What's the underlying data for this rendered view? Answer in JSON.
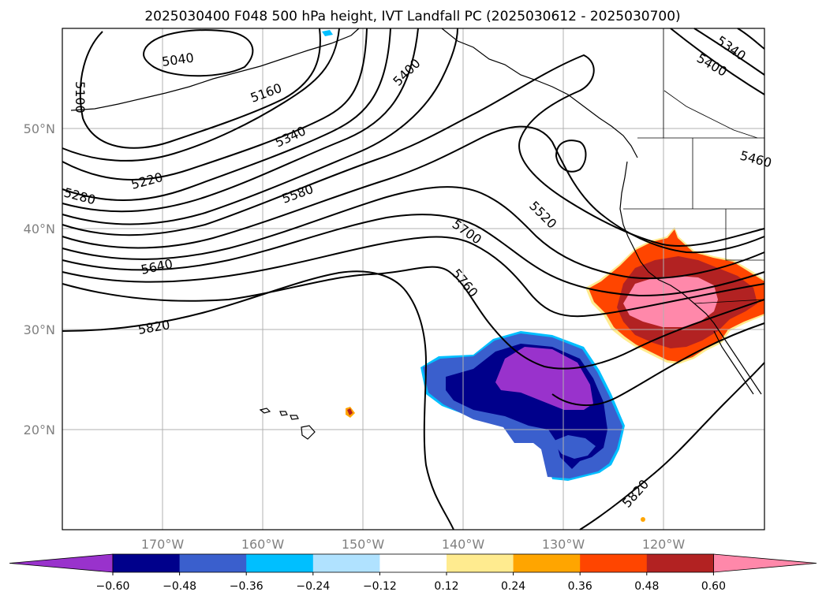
{
  "title": "2025030400 F048 500 hPa height, IVT Landfall PC (2025030612 - 2025030700)",
  "lat_labels": [
    "50°N",
    "40°N",
    "30°N",
    "20°N"
  ],
  "lon_labels": [
    "170°W",
    "160°W",
    "150°W",
    "140°W",
    "130°W",
    "120°W"
  ],
  "contour_labels": [
    "5040",
    "5100",
    "5160",
    "5220",
    "5280",
    "5340",
    "5400",
    "5460",
    "5520",
    "5580",
    "5640",
    "5700",
    "5760",
    "5820",
    "5820",
    "5340",
    "5400"
  ],
  "colorbar": {
    "ticks": [
      "−0.60",
      "−0.48",
      "−0.36",
      "−0.24",
      "−0.12",
      "0.12",
      "0.24",
      "0.36",
      "0.48",
      "0.60"
    ],
    "colors": [
      "#9932cc",
      "#00008b",
      "#3a5fcd",
      "#00bfff",
      "#b0e2ff",
      "#ffffff",
      "#ffeb8f",
      "#ffa500",
      "#ff4500",
      "#b22222",
      "#ff88aa"
    ]
  },
  "map": {
    "extent_lon": [
      -180,
      -110
    ],
    "extent_lat": [
      10,
      60
    ],
    "grid": true,
    "fields": {
      "contours": "500 hPa geopotential height",
      "shading": "IVT Landfall PC"
    },
    "shading_features": [
      {
        "sign": "positive",
        "max_level": "0.60",
        "center": "California coast"
      },
      {
        "sign": "negative",
        "min_level": "−0.60",
        "center": "subtropical eastern Pacific"
      }
    ]
  }
}
